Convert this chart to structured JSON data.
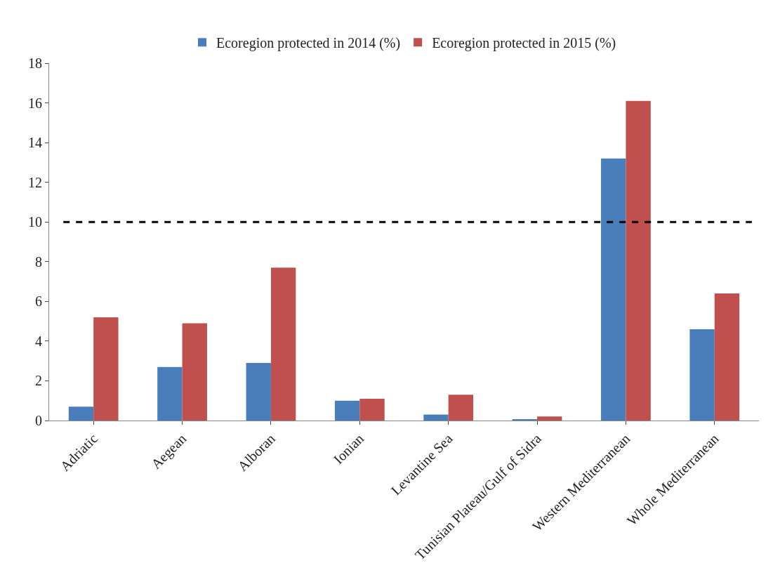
{
  "chart_data": {
    "type": "bar",
    "categories": [
      "Adriatic",
      "Aegean",
      "Alboran",
      "Ionian",
      "Levantine Sea",
      "Tunisian Plateau/Gulf of Sidra",
      "Western Mediterranean",
      "Whole Mediterranean"
    ],
    "series": [
      {
        "name": "Ecoregion protected in 2014 (%)",
        "color": "#4a7ebb",
        "values": [
          0.7,
          2.7,
          2.9,
          1.0,
          0.3,
          0.05,
          13.2,
          4.6
        ]
      },
      {
        "name": "Ecoregion protected in 2015 (%)",
        "color": "#c0504d",
        "values": [
          5.2,
          4.9,
          7.7,
          1.1,
          1.3,
          0.2,
          16.1,
          6.4
        ]
      }
    ],
    "ylim": [
      0,
      18
    ],
    "yticks": [
      0,
      2,
      4,
      6,
      8,
      10,
      12,
      14,
      16,
      18
    ],
    "grid": false,
    "legend": "top",
    "ref_lines": [
      {
        "axis": "y",
        "value": 10,
        "color": "#000000",
        "line_style": "dashed"
      }
    ]
  }
}
